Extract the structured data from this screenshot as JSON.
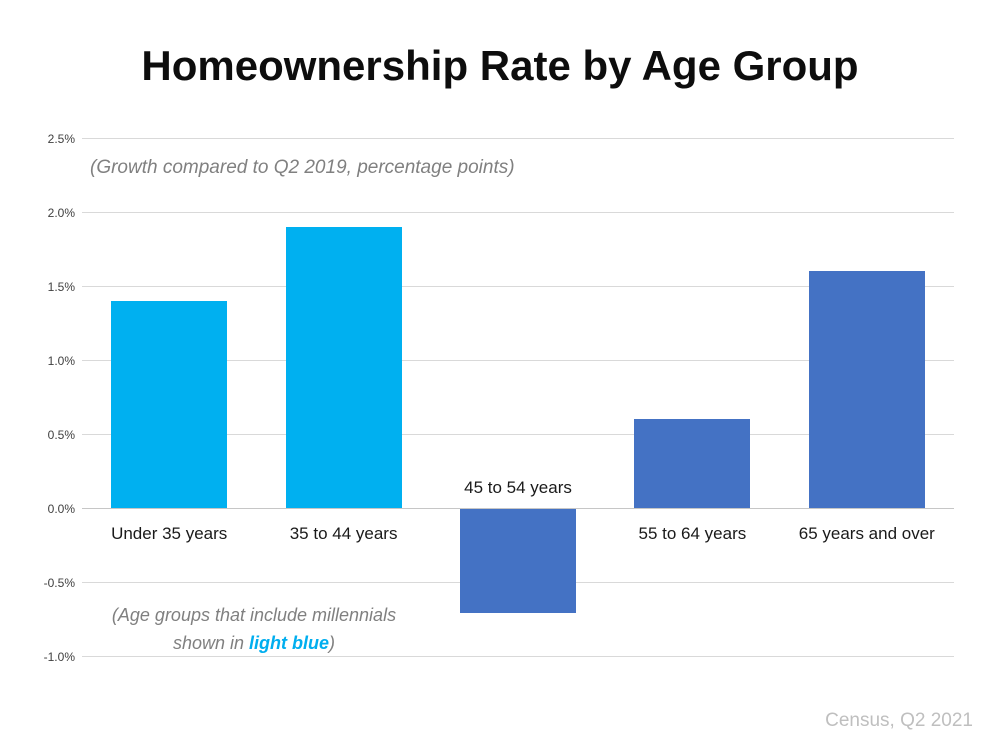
{
  "title": "Homeownership Rate by Age Group",
  "subtitle": "(Growth compared to Q2 2019, percentage points)",
  "annotation": {
    "line1": "(Age groups that include millennials",
    "line2_prefix": "shown in ",
    "line2_highlight": "light blue",
    "line2_suffix": ")"
  },
  "source": "Census, Q2 2021",
  "chart_data": {
    "type": "bar",
    "title": "Homeownership Rate by Age Group",
    "subtitle": "(Growth compared to Q2 2019, percentage points)",
    "categories": [
      "Under 35 years",
      "35 to 44 years",
      "45 to 54 years",
      "55 to 64 years",
      "65 years and over"
    ],
    "values": [
      1.4,
      1.9,
      -0.7,
      0.6,
      1.6
    ],
    "bar_colors": [
      "#00B0F0",
      "#00B0F0",
      "#4472C4",
      "#4472C4",
      "#4472C4"
    ],
    "millennial_groups": [
      "Under 35 years",
      "35 to 44 years"
    ],
    "xlabel": "",
    "ylabel": "",
    "ylim": [
      -1.0,
      2.5
    ],
    "ytick_step": 0.5,
    "ytick_labels": [
      "2.5%",
      "2.0%",
      "1.5%",
      "1.0%",
      "0.5%",
      "0.0%",
      "-0.5%",
      "-1.0%"
    ],
    "grid": true,
    "legend_position": "none",
    "colors": {
      "millennial_bar": "#00B0F0",
      "other_bar": "#4472C4",
      "gridline": "#D9D9D9",
      "axis_text": "#404040",
      "category_text": "#1A1A1A",
      "subtitle_text": "#808080",
      "source_text": "#BFBFBF",
      "highlight_text": "#00AEEF",
      "background": "#FFFFFF"
    }
  }
}
